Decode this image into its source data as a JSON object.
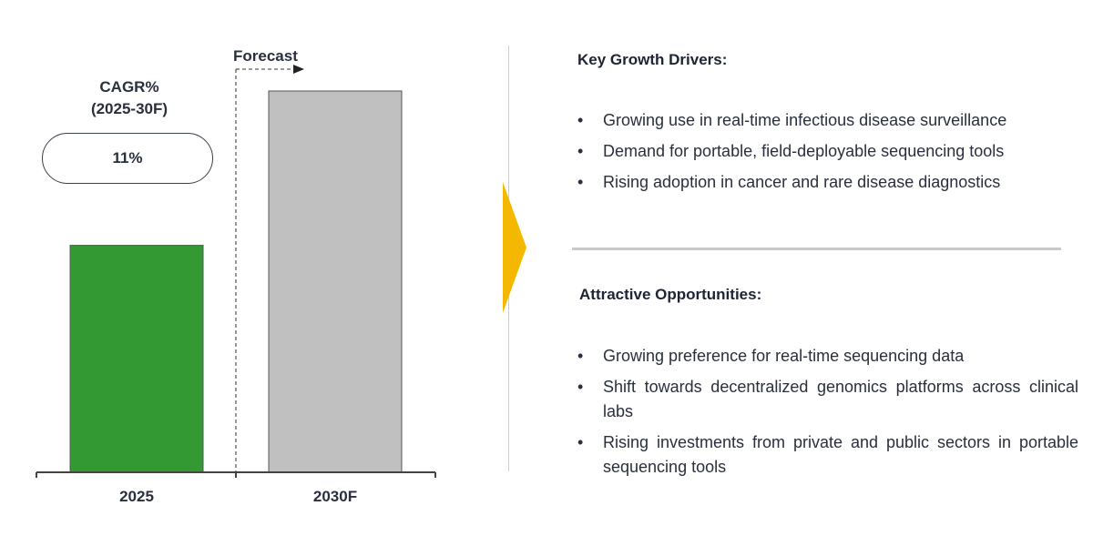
{
  "chart_data": {
    "type": "bar",
    "categories": [
      "2025",
      "2030F"
    ],
    "values": [
      100,
      168
    ],
    "colors": [
      "#339933",
      "#c0c0c0"
    ],
    "forecast_label": "Forecast",
    "cagr_title_line1": "CAGR%",
    "cagr_title_line2": "(2025-30F)",
    "cagr_value": "11%",
    "arrow_color": "#f5b800"
  },
  "drivers": {
    "title": "Key Growth Drivers:",
    "items": [
      "Growing use in real-time infectious disease surveillance",
      "Demand for portable, field-deployable sequencing tools",
      "Rising adoption in cancer and rare disease diagnostics"
    ]
  },
  "opportunities": {
    "title": "Attractive Opportunities:",
    "items": [
      "Growing preference for real-time sequencing data",
      "Shift towards decentralized genomics platforms across clinical labs",
      "Rising investments from private and public sectors in portable sequencing tools"
    ]
  },
  "bullet_char": "•"
}
